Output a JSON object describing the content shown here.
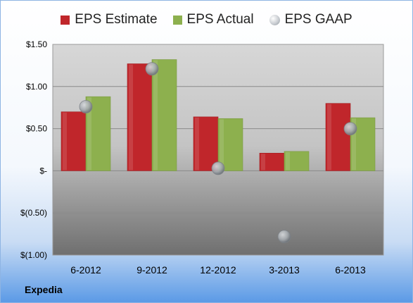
{
  "company": "Expedia",
  "chart_data": {
    "type": "bar",
    "categories": [
      "6-2012",
      "9-2012",
      "12-2012",
      "3-2013",
      "6-2013"
    ],
    "series": [
      {
        "name": "EPS Estimate",
        "type": "bar",
        "color": "#c0262b",
        "values": [
          0.7,
          1.27,
          0.64,
          0.21,
          0.8
        ]
      },
      {
        "name": "EPS Actual",
        "type": "bar",
        "color": "#8db04e",
        "values": [
          0.88,
          1.32,
          0.62,
          0.23,
          0.63
        ]
      },
      {
        "name": "EPS GAAP",
        "type": "scatter",
        "color": "#a9aeb4",
        "values": [
          0.76,
          1.21,
          0.03,
          -0.78,
          0.5
        ]
      }
    ],
    "ylim": [
      -1.0,
      1.5
    ],
    "yticks": [
      1.5,
      1.0,
      0.5,
      0.0,
      -0.5,
      -1.0
    ],
    "ytick_labels": [
      "$1.50",
      "$1.00",
      "$0.50",
      "$-",
      "$(0.50)",
      "$(1.00)"
    ],
    "grid": true,
    "legend_position": "top"
  }
}
